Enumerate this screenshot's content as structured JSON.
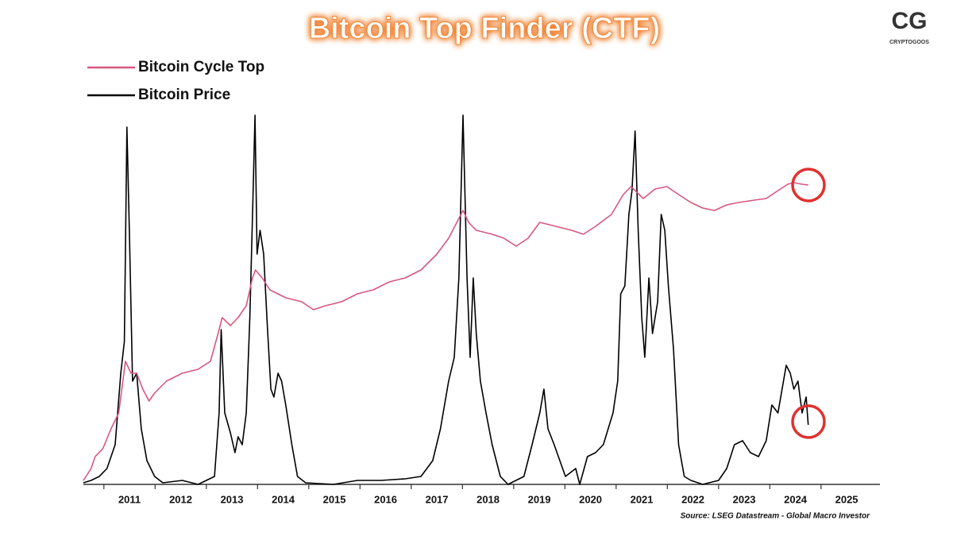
{
  "chart_data": {
    "type": "line",
    "title": "Bitcoin Top Finder (CTF)",
    "source": "Source: LSEG Datastream - Global Macro Investor",
    "logo": "CG",
    "logo_caption": "CRYPTOGOOS",
    "legend": "upper left",
    "xlim": [
      2010.6,
      2026.15
    ],
    "xticks": [
      2011,
      2012,
      2013,
      2014,
      2015,
      2016,
      2017,
      2018,
      2019,
      2020,
      2021,
      2022,
      2023,
      2024,
      2025
    ],
    "ylim": [
      0,
      465
    ],
    "series": [
      {
        "name": "Bitcoin Cycle Top",
        "color": "#d9577f",
        "x": [
          2010.6,
          2010.75,
          2010.83,
          2010.98,
          2011.14,
          2011.29,
          2011.42,
          2011.53,
          2011.64,
          2011.76,
          2011.88,
          2011.99,
          2012.22,
          2012.53,
          2012.84,
          2013.08,
          2013.23,
          2013.31,
          2013.47,
          2013.62,
          2013.78,
          2013.9,
          2013.96,
          2014.09,
          2014.24,
          2014.55,
          2014.86,
          2015.09,
          2015.33,
          2015.64,
          2015.95,
          2016.26,
          2016.57,
          2016.88,
          2017.19,
          2017.5,
          2017.73,
          2018.01,
          2018.12,
          2018.27,
          2018.58,
          2018.81,
          2019.05,
          2019.28,
          2019.51,
          2019.82,
          2020.13,
          2020.36,
          2020.6,
          2020.91,
          2021.14,
          2021.29,
          2021.37,
          2021.53,
          2021.76,
          2021.99,
          2022.22,
          2022.46,
          2022.69,
          2022.92,
          2023.16,
          2023.39,
          2023.7,
          2023.93,
          2024.16,
          2024.35,
          2024.47,
          2024.63,
          2024.75
        ],
        "values": [
          5,
          20,
          35,
          45,
          70,
          90,
          155,
          140,
          140,
          120,
          105,
          115,
          130,
          140,
          145,
          155,
          190,
          210,
          200,
          210,
          225,
          260,
          270,
          260,
          245,
          235,
          230,
          220,
          225,
          230,
          240,
          245,
          255,
          260,
          270,
          290,
          310,
          345,
          330,
          320,
          315,
          310,
          300,
          310,
          330,
          325,
          320,
          315,
          325,
          340,
          365,
          375,
          370,
          360,
          372,
          375,
          365,
          355,
          348,
          345,
          352,
          355,
          358,
          360,
          370,
          378,
          380,
          378,
          377
        ]
      },
      {
        "name": "Bitcoin Price",
        "color": "#000000",
        "x": [
          2010.6,
          2010.75,
          2010.91,
          2011.06,
          2011.22,
          2011.33,
          2011.4,
          2011.45,
          2011.5,
          2011.56,
          2011.64,
          2011.73,
          2011.84,
          2011.99,
          2012.15,
          2012.53,
          2012.84,
          2013.16,
          2013.25,
          2013.29,
          2013.36,
          2013.47,
          2013.56,
          2013.62,
          2013.7,
          2013.78,
          2013.85,
          2013.91,
          2013.95,
          2013.99,
          2014.05,
          2014.12,
          2014.19,
          2014.26,
          2014.32,
          2014.4,
          2014.47,
          2014.55,
          2014.67,
          2014.78,
          2014.94,
          2015.48,
          2015.95,
          2016.41,
          2016.88,
          2017.19,
          2017.42,
          2017.57,
          2017.73,
          2017.84,
          2017.93,
          2018.01,
          2018.09,
          2018.15,
          2018.21,
          2018.27,
          2018.35,
          2018.46,
          2018.58,
          2018.74,
          2018.89,
          2019.2,
          2019.36,
          2019.51,
          2019.59,
          2019.67,
          2019.79,
          2019.9,
          2020.01,
          2020.21,
          2020.29,
          2020.44,
          2020.6,
          2020.75,
          2020.94,
          2021.03,
          2021.09,
          2021.17,
          2021.25,
          2021.31,
          2021.37,
          2021.43,
          2021.5,
          2021.56,
          2021.64,
          2021.71,
          2021.81,
          2021.88,
          2021.95,
          2022.02,
          2022.12,
          2022.22,
          2022.33,
          2022.46,
          2022.69,
          2023.0,
          2023.16,
          2023.31,
          2023.47,
          2023.62,
          2023.78,
          2023.93,
          2024.04,
          2024.16,
          2024.24,
          2024.32,
          2024.4,
          2024.47,
          2024.55,
          2024.63,
          2024.71,
          2024.75
        ],
        "values": [
          2,
          5,
          10,
          20,
          50,
          140,
          180,
          450,
          310,
          130,
          140,
          70,
          30,
          10,
          2,
          5,
          0,
          10,
          90,
          195,
          90,
          65,
          40,
          60,
          50,
          90,
          210,
          360,
          465,
          290,
          320,
          290,
          200,
          120,
          110,
          140,
          130,
          100,
          50,
          10,
          2,
          0,
          5,
          5,
          7,
          10,
          30,
          70,
          130,
          160,
          260,
          465,
          260,
          160,
          260,
          190,
          130,
          90,
          50,
          10,
          0,
          10,
          50,
          90,
          120,
          70,
          50,
          30,
          10,
          20,
          0,
          35,
          40,
          50,
          90,
          130,
          240,
          250,
          340,
          370,
          445,
          320,
          210,
          160,
          260,
          190,
          230,
          340,
          320,
          250,
          170,
          50,
          10,
          5,
          0,
          5,
          20,
          50,
          55,
          40,
          35,
          55,
          100,
          90,
          120,
          150,
          140,
          120,
          130,
          90,
          110,
          75
        ]
      }
    ]
  }
}
